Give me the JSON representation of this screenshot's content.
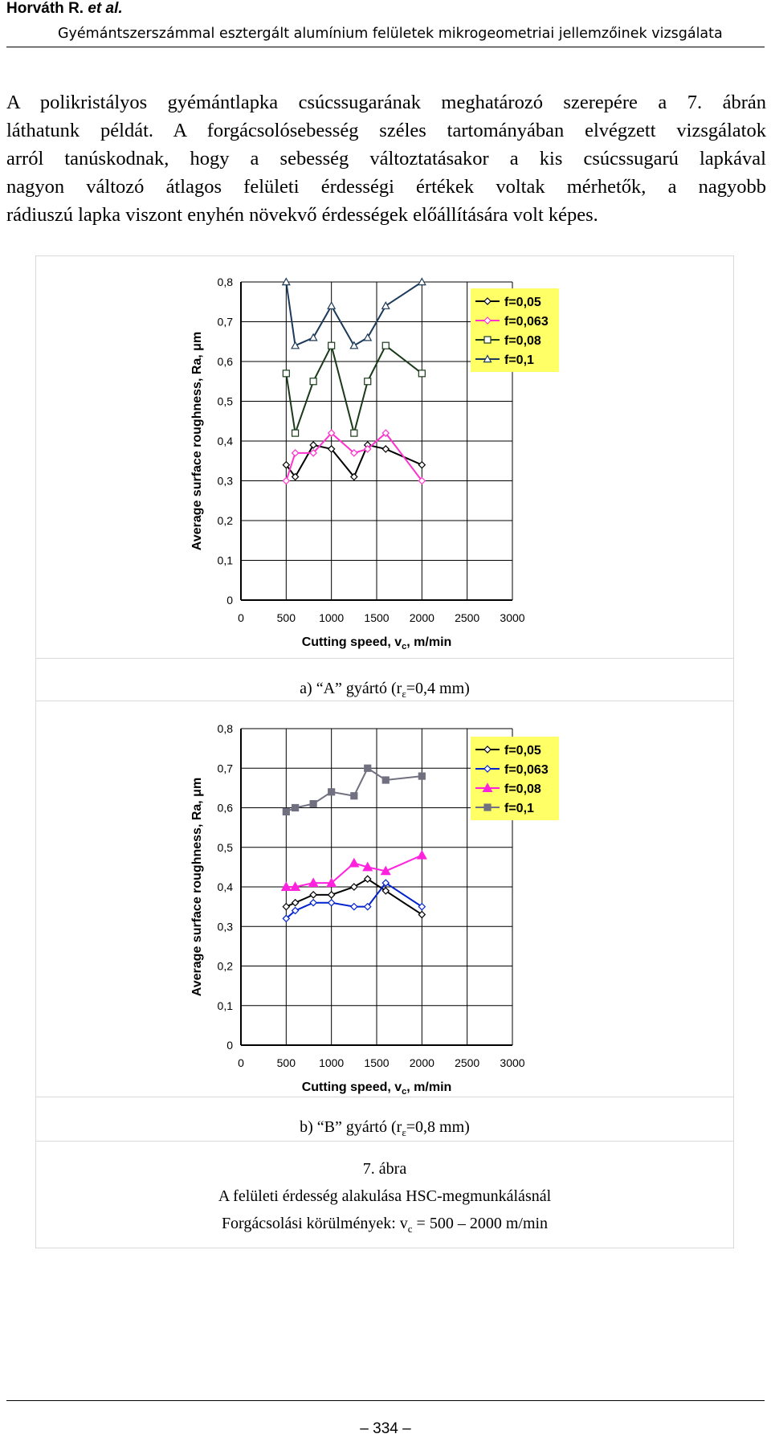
{
  "header": {
    "author": "Horváth R.",
    "author_etal": "et al.",
    "title": "Gyémántszerszámmal esztergált alumínium felületek mikrogeometriai jellemzőinek vizsgálata"
  },
  "paragraph_lines": [
    "A polikristályos gyémántlapka csúcssugarának meghatározó szerepére a 7. ábrán",
    "láthatunk példát. A forgácsolósebesség széles tartományában elvégzett vizsgálatok",
    "arról tanúskodnak, hogy a sebesség változtatásakor a kis csúcssugarú lapkával",
    "nagyon változó átlagos felületi érdességi értékek voltak mérhetők, a nagyobb",
    "rádiuszú lapka viszont enyhén növekvő érdességek előállítására volt képes."
  ],
  "captions": {
    "a": "a) “A” gyártó (rε=0,4 mm)",
    "b": "b) “B” gyártó (rε=0,8 mm)",
    "fig_num": "7. ábra",
    "fig_title": "A felületi érdesség alakulása HSC-megmunkálásnál",
    "fig_cond": "Forgácsolási körülmények: vc = 500 – 2000 m/min"
  },
  "page_number": "– 334 –",
  "chart_data": [
    {
      "type": "line",
      "xlabel": "Cutting speed, vc, m/min",
      "ylabel": "Average surface roughness, Ra, μm",
      "xlim": [
        0,
        3000
      ],
      "ylim": [
        0,
        0.8
      ],
      "xticks": [
        "0",
        "500",
        "1000",
        "1500",
        "2000",
        "2500",
        "3000"
      ],
      "yticks": [
        "0",
        "0,1",
        "0,2",
        "0,3",
        "0,4",
        "0,5",
        "0,6",
        "0,7",
        "0,8"
      ],
      "grid": true,
      "legend": "top-right",
      "x": [
        500,
        600,
        800,
        1000,
        1250,
        1400,
        1600,
        2000
      ],
      "series": [
        {
          "name": "f=0,05",
          "color": "#000000",
          "marker": "diamond-open",
          "values": [
            0.34,
            0.31,
            0.39,
            0.38,
            0.31,
            0.39,
            0.38,
            0.34
          ]
        },
        {
          "name": "f=0,063",
          "color": "#ff33cc",
          "marker": "diamond-open",
          "values": [
            0.3,
            0.37,
            0.37,
            0.42,
            0.37,
            0.38,
            0.42,
            0.3
          ]
        },
        {
          "name": "f=0,08",
          "color": "#1a3a1a",
          "marker": "square-open",
          "values": [
            0.57,
            0.42,
            0.55,
            0.64,
            0.42,
            0.55,
            0.64,
            0.57
          ]
        },
        {
          "name": "f=0,1",
          "color": "#1c3a5a",
          "marker": "triangle-open",
          "values": [
            0.8,
            0.64,
            0.66,
            0.74,
            0.64,
            0.66,
            0.74,
            0.8
          ]
        }
      ]
    },
    {
      "type": "line",
      "xlabel": "Cutting speed, vc, m/min",
      "ylabel": "Average surface roughness, Ra, μm",
      "xlim": [
        0,
        3000
      ],
      "ylim": [
        0,
        0.8
      ],
      "xticks": [
        "0",
        "500",
        "1000",
        "1500",
        "2000",
        "2500",
        "3000"
      ],
      "yticks": [
        "0",
        "0,1",
        "0,2",
        "0,3",
        "0,4",
        "0,5",
        "0,6",
        "0,7",
        "0,8"
      ],
      "grid": true,
      "legend": "top-right",
      "x": [
        500,
        600,
        800,
        1000,
        1250,
        1400,
        1600,
        2000
      ],
      "series": [
        {
          "name": "f=0,05",
          "color": "#000000",
          "marker": "diamond-open",
          "values": [
            0.35,
            0.36,
            0.38,
            0.38,
            0.4,
            0.42,
            0.39,
            0.33
          ]
        },
        {
          "name": "f=0,063",
          "color": "#0022cc",
          "marker": "diamond-open",
          "values": [
            0.32,
            0.34,
            0.36,
            0.36,
            0.35,
            0.35,
            0.41,
            0.35
          ]
        },
        {
          "name": "f=0,08",
          "color": "#ff22dd",
          "marker": "triangle-filled",
          "values": [
            0.4,
            0.4,
            0.41,
            0.41,
            0.46,
            0.45,
            0.44,
            0.48
          ]
        },
        {
          "name": "f=0,1",
          "color": "#707080",
          "marker": "square-filled",
          "values": [
            0.59,
            0.6,
            0.61,
            0.64,
            0.63,
            0.7,
            0.67,
            0.68
          ]
        }
      ]
    }
  ]
}
